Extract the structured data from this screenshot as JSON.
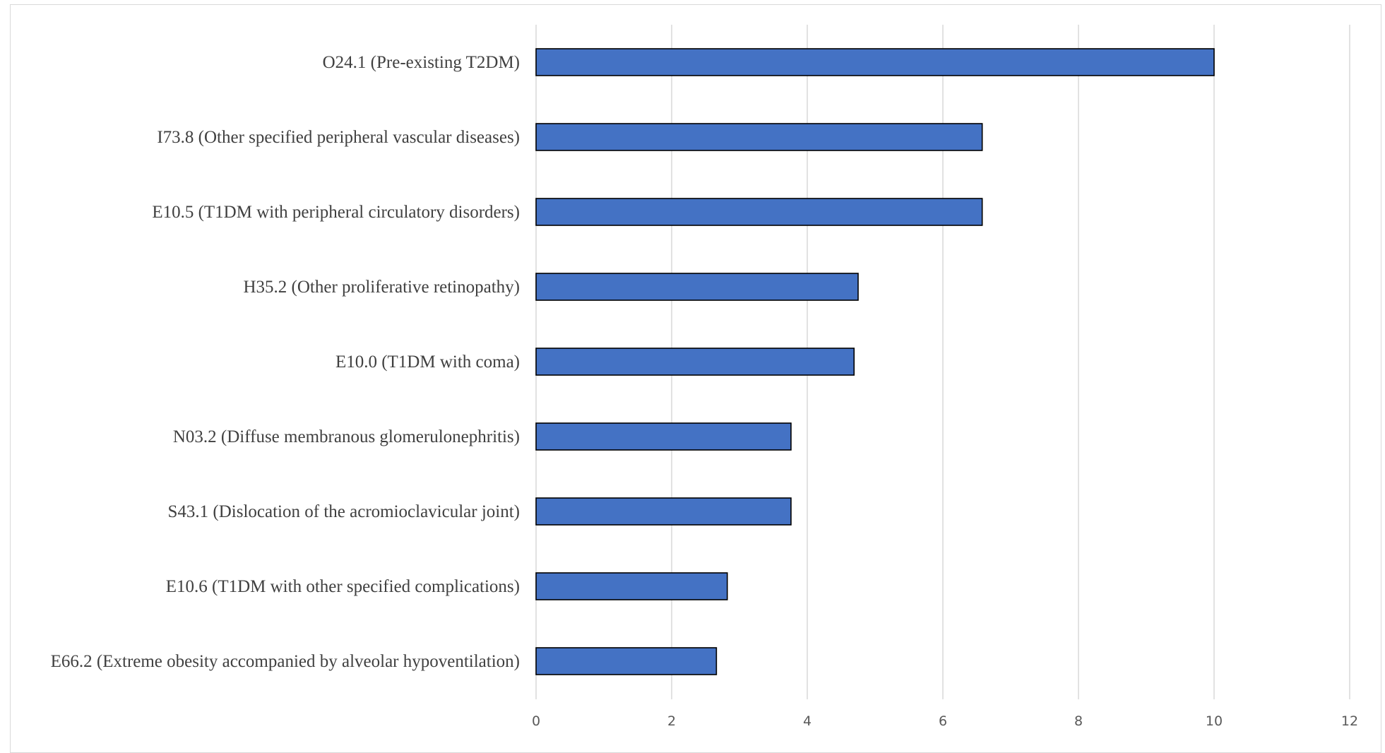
{
  "chart_data": {
    "type": "bar",
    "orientation": "horizontal",
    "categories": [
      "O24.1 (Pre-existing T2DM)",
      "I73.8 (Other specified peripheral vascular diseases)",
      "E10.5 (T1DM with peripheral circulatory disorders)",
      "H35.2 (Other proliferative retinopathy)",
      "E10.0 (T1DM with coma)",
      "N03.2 (Diffuse membranous glomerulonephritis)",
      "S43.1 (Dislocation of the acromioclavicular joint)",
      "E10.6 (T1DM with other specified complications)",
      "E66.2 (Extreme obesity accompanied by alveolar hypoventilation)"
    ],
    "values": [
      10.0,
      6.58,
      6.58,
      4.75,
      4.69,
      3.76,
      3.76,
      2.82,
      2.66
    ],
    "xlim": [
      0,
      12
    ],
    "x_ticks": [
      0,
      2,
      4,
      6,
      8,
      10,
      12
    ],
    "grid": "vertical",
    "legend": "none",
    "title": "",
    "xlabel": "",
    "ylabel": "",
    "bar_color": "#4472c4",
    "bar_border_color": "#000000",
    "grid_color": "#d9d9d9",
    "text_color": "#404040"
  }
}
